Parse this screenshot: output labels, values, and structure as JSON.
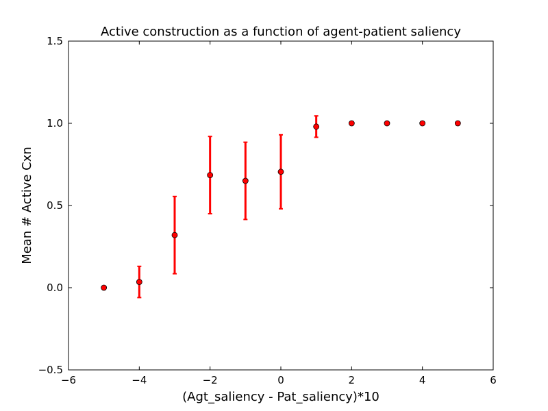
{
  "chart_data": {
    "type": "scatter",
    "title": "Active construction as a function of agent-patient saliency",
    "xlabel": "(Agt_saliency - Pat_saliency)*10",
    "ylabel": "Mean # Active Cxn",
    "xlim": [
      -6,
      6
    ],
    "ylim": [
      -0.5,
      1.5
    ],
    "xticks": [
      -6,
      -4,
      -2,
      0,
      2,
      4,
      6
    ],
    "xtick_labels": [
      "−6",
      "−4",
      "−2",
      "0",
      "2",
      "4",
      "6"
    ],
    "yticks": [
      -0.5,
      0.0,
      0.5,
      1.0,
      1.5
    ],
    "ytick_labels": [
      "−0.5",
      "0.0",
      "0.5",
      "1.0",
      "1.5"
    ],
    "grid": false,
    "series": [
      {
        "x": [
          -5,
          -4,
          -3,
          -2,
          -1,
          0,
          1,
          2,
          3,
          4,
          5
        ],
        "y": [
          0.0,
          0.035,
          0.32,
          0.685,
          0.65,
          0.705,
          0.98,
          1.0,
          1.0,
          1.0,
          1.0
        ],
        "yerr": [
          0.0,
          0.095,
          0.235,
          0.235,
          0.235,
          0.225,
          0.065,
          0.0,
          0.0,
          0.0,
          0.0
        ],
        "marker_color": "#ff0000",
        "error_color": "#ff0000"
      }
    ]
  }
}
